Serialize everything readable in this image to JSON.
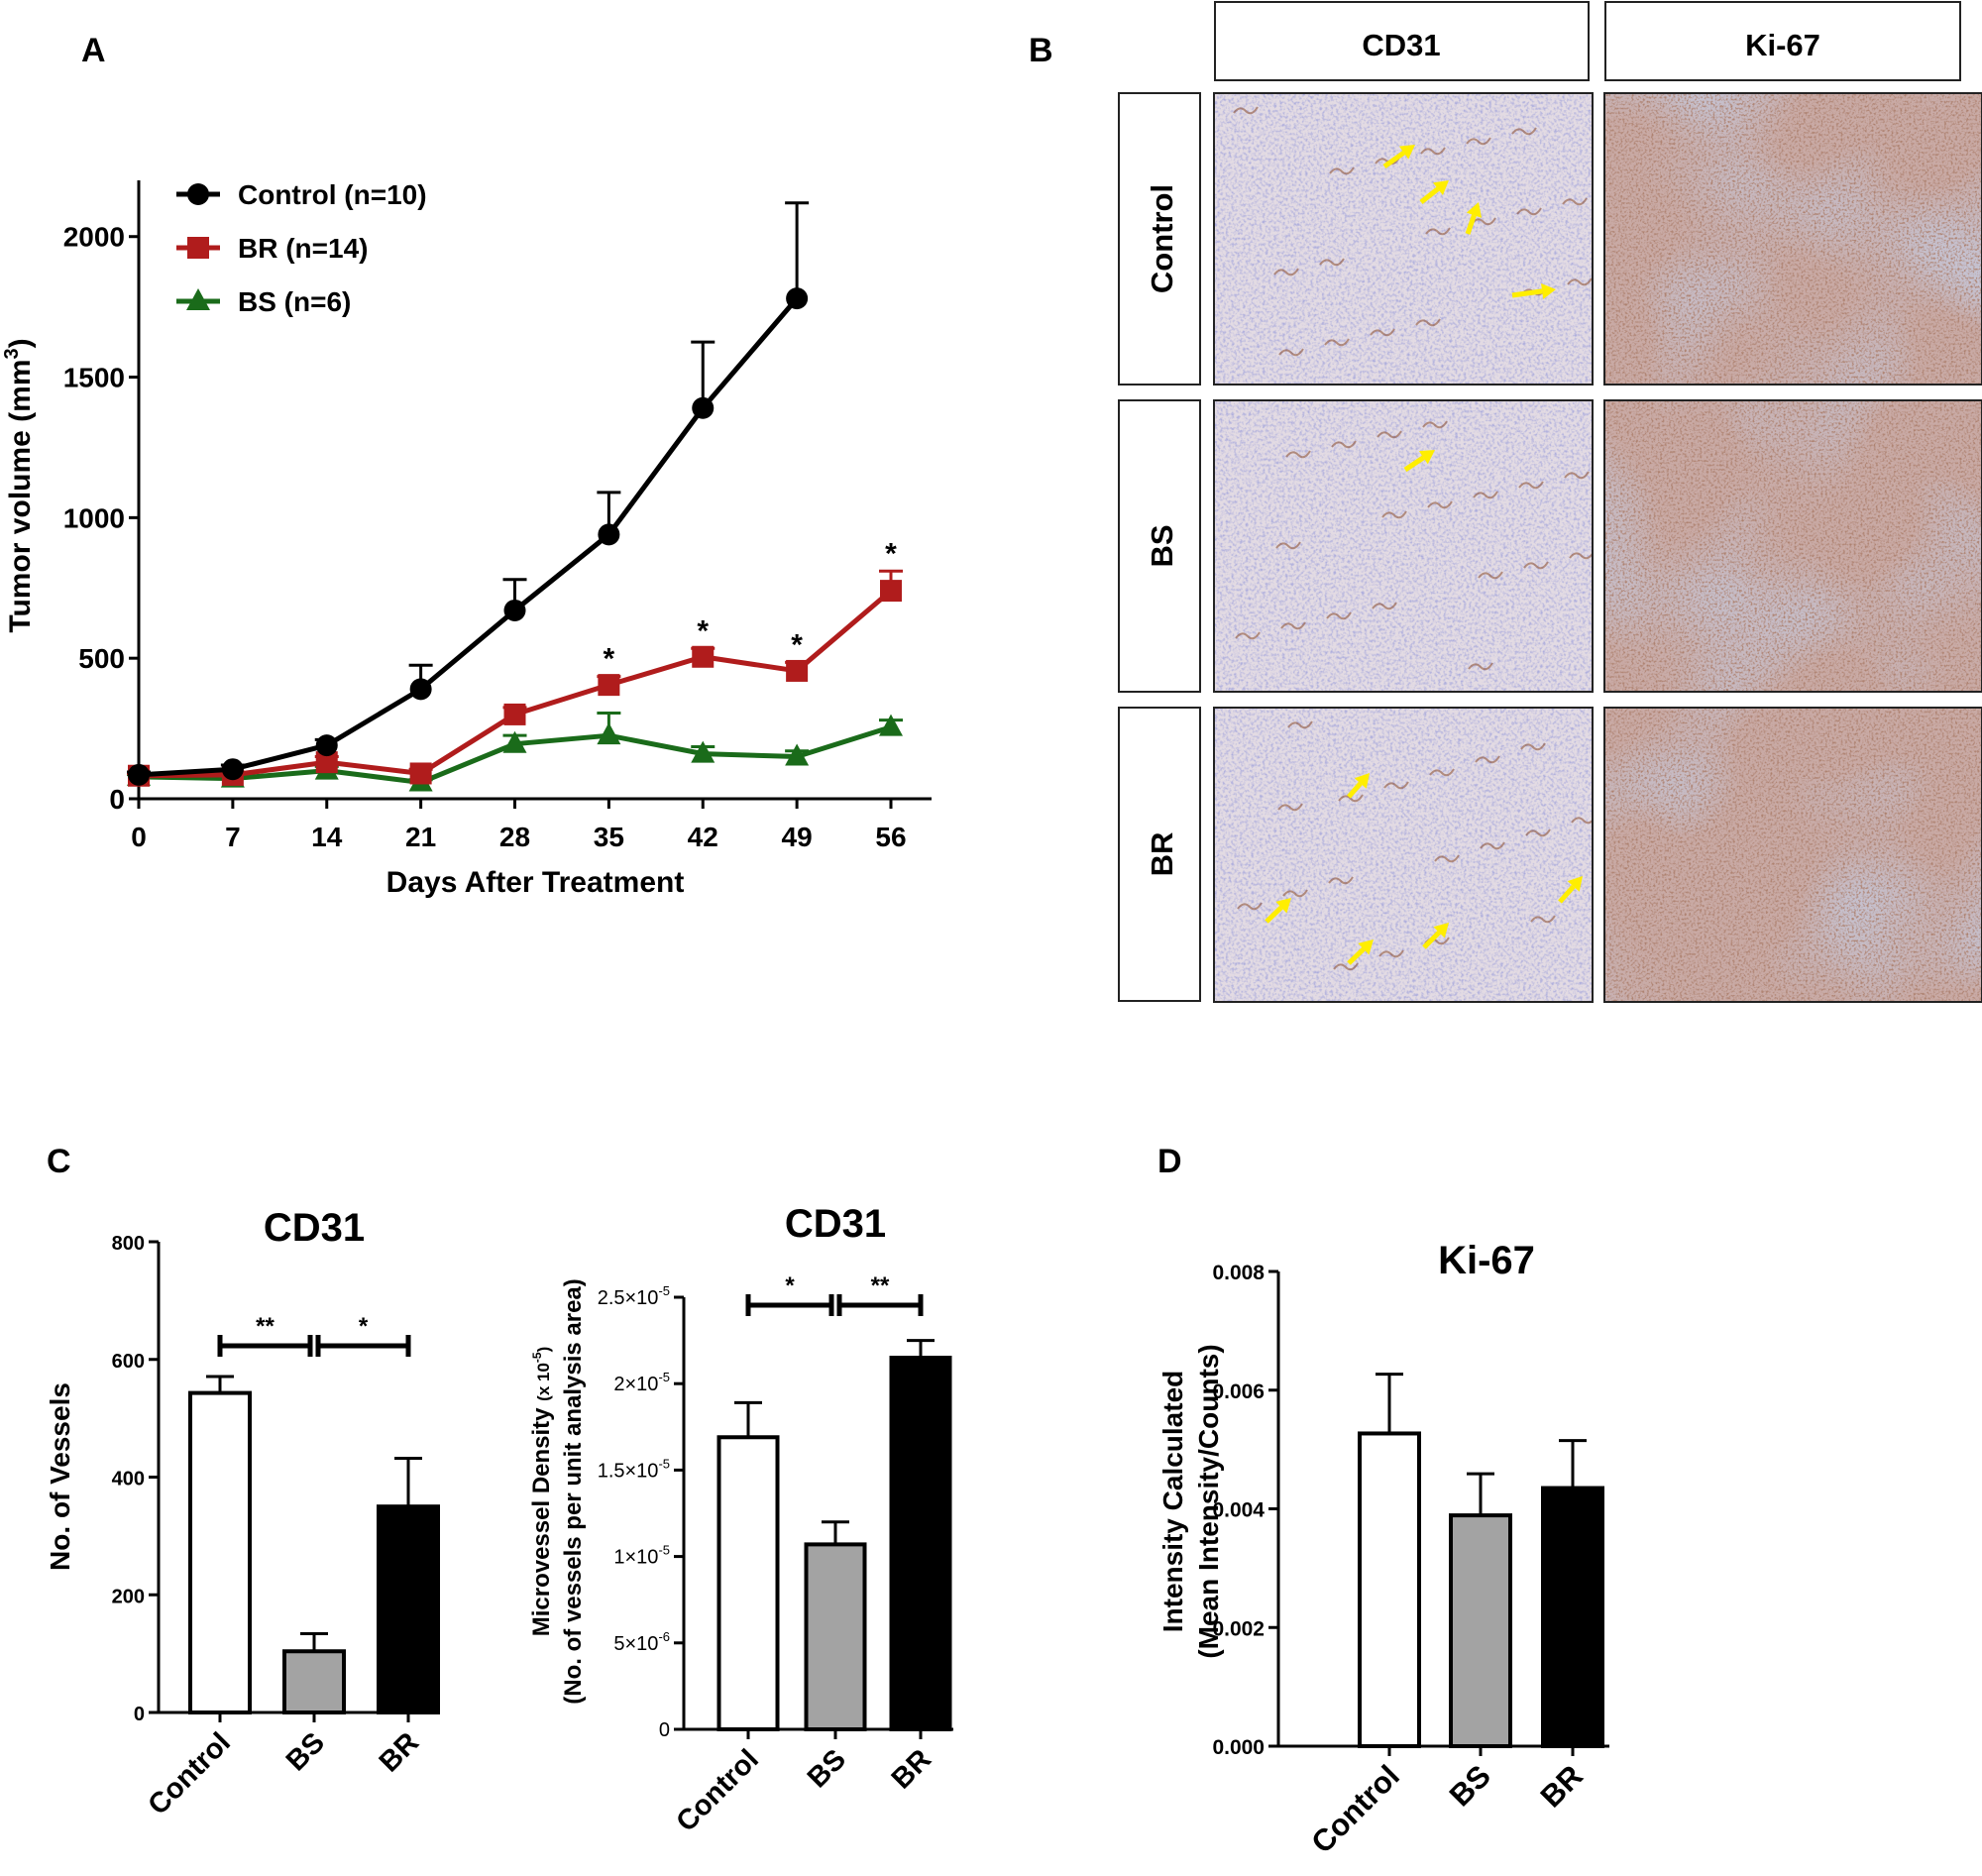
{
  "panels": {
    "A": "A",
    "B": "B",
    "C": "C",
    "D": "D"
  },
  "chart_data": [
    {
      "panel": "A",
      "type": "line",
      "title": "",
      "xlabel": "Days After Treatment",
      "ylabel": "Tumor volume (mm³)",
      "ylabel_main": "Tumor volume (mm",
      "ylabel_sup": "3",
      "ylabel_end": ")",
      "x": [
        0,
        7,
        14,
        21,
        28,
        35,
        42,
        49,
        56
      ],
      "xticks": [
        "0",
        "7",
        "14",
        "21",
        "28",
        "35",
        "42",
        "49",
        "56"
      ],
      "yticks": [
        0,
        500,
        1000,
        1500,
        2000
      ],
      "ylim": [
        0,
        2200
      ],
      "xlim": [
        0,
        56
      ],
      "legend_position": "top-left",
      "series": [
        {
          "name": "Control (n=10)",
          "color": "#000000",
          "marker": "circle",
          "x": [
            0,
            7,
            14,
            21,
            28,
            35,
            42,
            49
          ],
          "values": [
            85,
            105,
            190,
            390,
            670,
            940,
            1390,
            1780
          ],
          "errors": [
            10,
            15,
            20,
            85,
            110,
            150,
            235,
            340
          ]
        },
        {
          "name": "BR (n=14)",
          "color": "#b01c1c",
          "marker": "square",
          "x": [
            0,
            7,
            14,
            21,
            28,
            35,
            42,
            49,
            56
          ],
          "values": [
            82,
            85,
            130,
            90,
            300,
            405,
            505,
            455,
            740
          ],
          "errors": [
            8,
            10,
            20,
            15,
            25,
            30,
            30,
            30,
            70
          ],
          "significant": [
            false,
            false,
            false,
            false,
            false,
            true,
            true,
            true,
            true
          ]
        },
        {
          "name": "BS (n=6)",
          "color": "#1a6b1a",
          "marker": "triangle",
          "x": [
            0,
            7,
            14,
            21,
            28,
            35,
            42,
            49,
            56
          ],
          "values": [
            78,
            72,
            100,
            58,
            195,
            225,
            160,
            150,
            255
          ],
          "errors": [
            8,
            8,
            15,
            10,
            30,
            80,
            25,
            20,
            25
          ]
        }
      ],
      "annotations": [
        "*"
      ]
    },
    {
      "panel": "C1",
      "type": "bar",
      "title": "CD31",
      "ylabel": "No. of Vessels",
      "categories": [
        "Control",
        "BS",
        "BR"
      ],
      "values": [
        543,
        104,
        350
      ],
      "errors": [
        28,
        30,
        82
      ],
      "colors": [
        "#ffffff",
        "#a3a3a3",
        "#000000"
      ],
      "ylim": [
        0,
        800
      ],
      "yticks": [
        "0",
        "200",
        "400",
        "600",
        "800"
      ],
      "yticks_values": [
        0,
        200,
        400,
        600,
        800
      ],
      "significance": [
        {
          "from": "Control",
          "to": "BS",
          "label": "**"
        },
        {
          "from": "BS",
          "to": "BR",
          "label": "*"
        }
      ]
    },
    {
      "panel": "C2",
      "type": "bar",
      "title": "CD31",
      "ylabel_line1": "Microvessel Density",
      "ylabel_unit": "(x 10",
      "ylabel_unit_sup": "-5",
      "ylabel_unit_end": ")",
      "ylabel_line2": "(No. of vessels per unit analysis area)",
      "categories": [
        "Control",
        "BS",
        "BR"
      ],
      "values": [
        1.69e-05,
        1.07e-05,
        2.15e-05
      ],
      "errors": [
        2e-06,
        1.3e-06,
        1e-06
      ],
      "colors": [
        "#ffffff",
        "#a3a3a3",
        "#000000"
      ],
      "ylim": [
        0,
        2.5e-05
      ],
      "yticks_values": [
        0,
        5e-06,
        1e-05,
        1.5e-05,
        2e-05,
        2.5e-05
      ],
      "yticks": [
        {
          "base": "0",
          "exp": ""
        },
        {
          "base": "5×10",
          "exp": "-6"
        },
        {
          "base": "1×10",
          "exp": "-5"
        },
        {
          "base": "1.5×10",
          "exp": "-5"
        },
        {
          "base": "2×10",
          "exp": "-5"
        },
        {
          "base": "2.5×10",
          "exp": "-5"
        }
      ],
      "significance": [
        {
          "from": "Control",
          "to": "BS",
          "label": "*"
        },
        {
          "from": "BS",
          "to": "BR",
          "label": "**"
        }
      ]
    },
    {
      "panel": "D",
      "type": "bar",
      "title": "Ki-67",
      "ylabel_line1": "Intensity Calculated",
      "ylabel_line2": "(Mean Intensity/Counts)",
      "categories": [
        "Control",
        "BS",
        "BR"
      ],
      "values": [
        0.00527,
        0.00389,
        0.00435
      ],
      "errors": [
        0.001,
        0.0007,
        0.0008
      ],
      "colors": [
        "#ffffff",
        "#a3a3a3",
        "#000000"
      ],
      "ylim": [
        0,
        0.008
      ],
      "yticks_values": [
        0,
        0.002,
        0.004,
        0.006,
        0.008
      ],
      "yticks": [
        "0.000",
        "0.002",
        "0.004",
        "0.006",
        "0.008"
      ]
    }
  ],
  "micrographs": {
    "columns": [
      "CD31",
      "Ki-67"
    ],
    "rows": [
      "Control",
      "BS",
      "BR"
    ],
    "stain_colors": {
      "tissue_background": "#d6ccd8",
      "hematoxylin": "#6a6ab0",
      "dab": "#8a4a2a",
      "arrow": "#ffee00"
    },
    "arrows_per_row": [
      4,
      1,
      5
    ]
  }
}
